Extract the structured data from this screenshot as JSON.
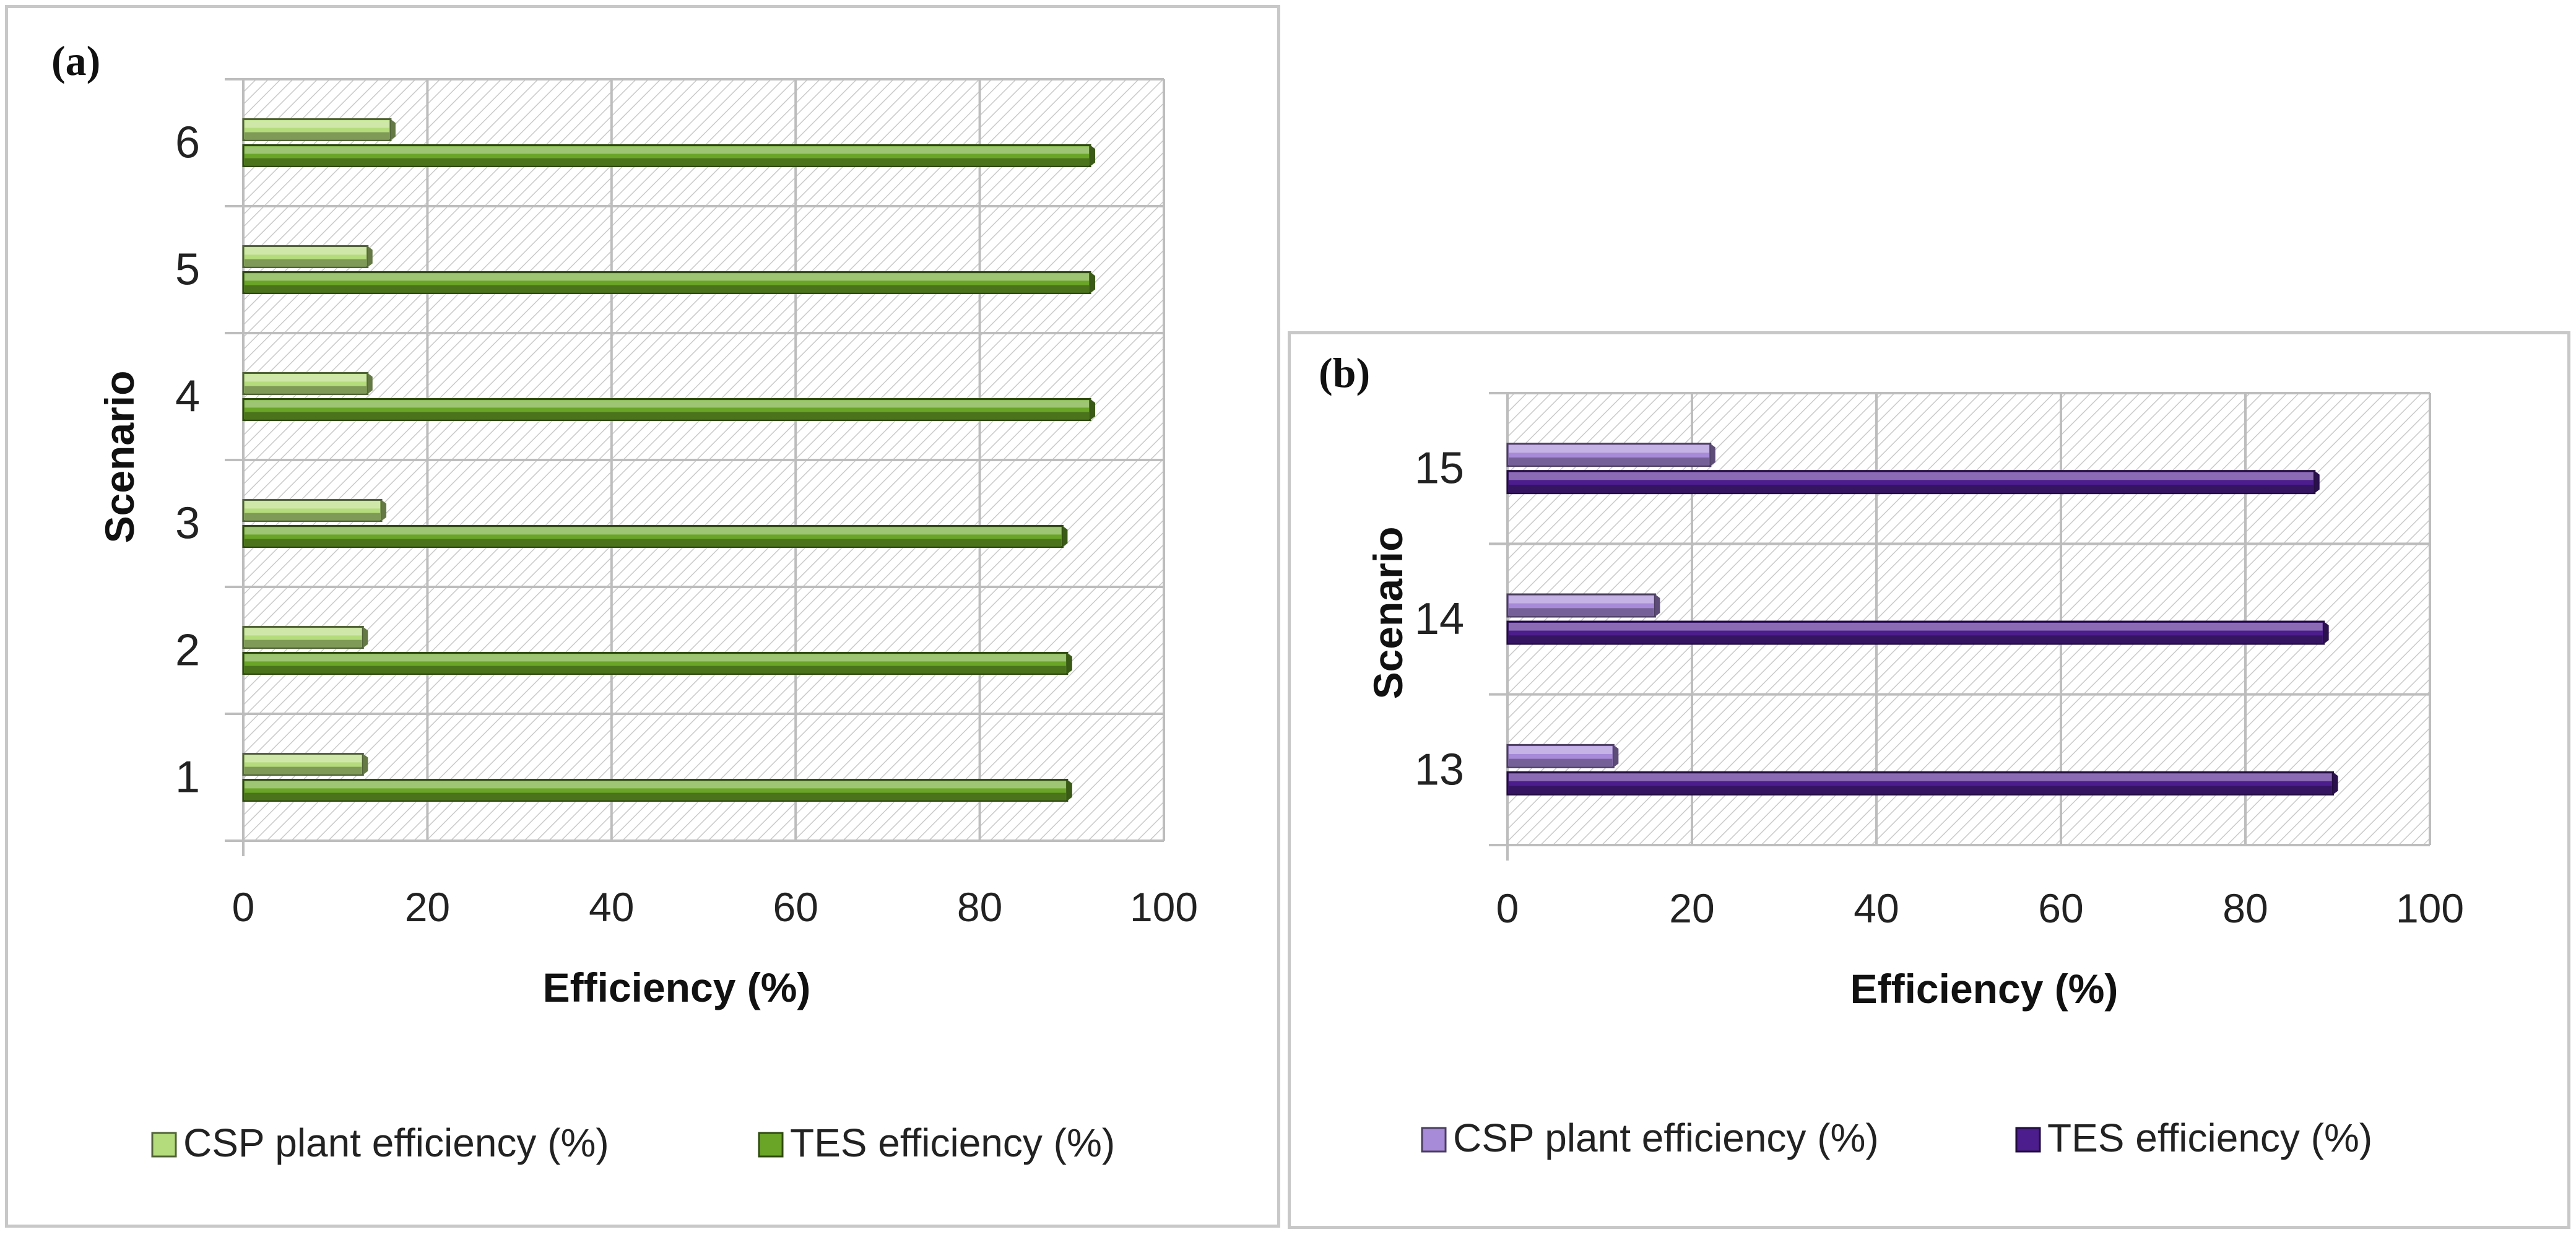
{
  "colors": {
    "a_csp": "#b5dc7c",
    "a_tes": "#6aa528",
    "b_csp": "#a78ad8",
    "b_tes": "#4c1d8c",
    "grid": "#bdbdbd",
    "hatch": "#c9c9c9"
  },
  "chart_data": [
    {
      "panel_label": "(a)",
      "type": "bar",
      "orientation": "horizontal",
      "categories": [
        "1",
        "2",
        "3",
        "4",
        "5",
        "6"
      ],
      "series": [
        {
          "name": "CSP plant efficiency (%)",
          "values": [
            13,
            13,
            15,
            13.5,
            13.5,
            16
          ]
        },
        {
          "name": "TES efficiency (%)",
          "values": [
            89.5,
            89.5,
            89,
            92,
            92,
            92
          ]
        }
      ],
      "xlabel": "Efficiency (%)",
      "ylabel": "Scenario",
      "xlim": [
        0,
        100
      ],
      "xticks": [
        "0",
        "20",
        "40",
        "60",
        "80",
        "100"
      ],
      "grid": true,
      "legend": "bottom"
    },
    {
      "panel_label": "(b)",
      "type": "bar",
      "orientation": "horizontal",
      "categories": [
        "13",
        "14",
        "15"
      ],
      "series": [
        {
          "name": "CSP plant efficiency (%)",
          "values": [
            11.5,
            16,
            22
          ]
        },
        {
          "name": "TES efficiency (%)",
          "values": [
            89.5,
            88.5,
            87.5
          ]
        }
      ],
      "xlabel": "Efficiency (%)",
      "ylabel": "Scenario",
      "xlim": [
        0,
        100
      ],
      "xticks": [
        "0",
        "20",
        "40",
        "60",
        "80",
        "100"
      ],
      "grid": true,
      "legend": "bottom"
    }
  ]
}
